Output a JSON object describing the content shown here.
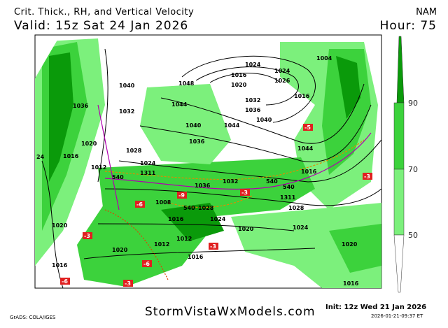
{
  "header": {
    "title": "Crit. Thick., RH, and Vertical Velocity",
    "valid": "Valid: 15z Sat 24 Jan 2026",
    "model": "NAM",
    "hour": "Hour: 75"
  },
  "footer": {
    "grads": "GrADS: COLA/IGES",
    "site": "StormVistaWxModels.com",
    "init": "Init: 12z Wed 21 Jan 2026",
    "stamp": "2026-01-21-09:37 ET"
  },
  "colorbar": {
    "ticks": [
      "90",
      "70",
      "50"
    ],
    "colors": {
      "above90": "#0a9a0a",
      "70to90": "#3cd23c",
      "50to70": "#7cf07c",
      "below50": "#ffffff"
    }
  },
  "map": {
    "isobar_labels": [
      "1016",
      "1020",
      "1024",
      "1026",
      "1048",
      "1044",
      "1040",
      "1036",
      "1032",
      "1040",
      "1044",
      "1040",
      "1036",
      "1032",
      "1028",
      "1024",
      "1016",
      "1020",
      "1012",
      "1036",
      "1032",
      "1028",
      "1024",
      "1020",
      "1016",
      "1012",
      "1008",
      "1016",
      "1020",
      "1024",
      "1028",
      "1016",
      "1020",
      "1012",
      "1016",
      "1004",
      "1024",
      "1016",
      "1016",
      "1036",
      "1044",
      "1020",
      "24"
    ],
    "thickness_labels": [
      "540",
      "540",
      "540",
      "540",
      "1311",
      "1311"
    ],
    "vv_labels": [
      "-3",
      "-6",
      "-9",
      "-3",
      "-6",
      "-3",
      "-3",
      "-5",
      "-6",
      "-3"
    ]
  }
}
